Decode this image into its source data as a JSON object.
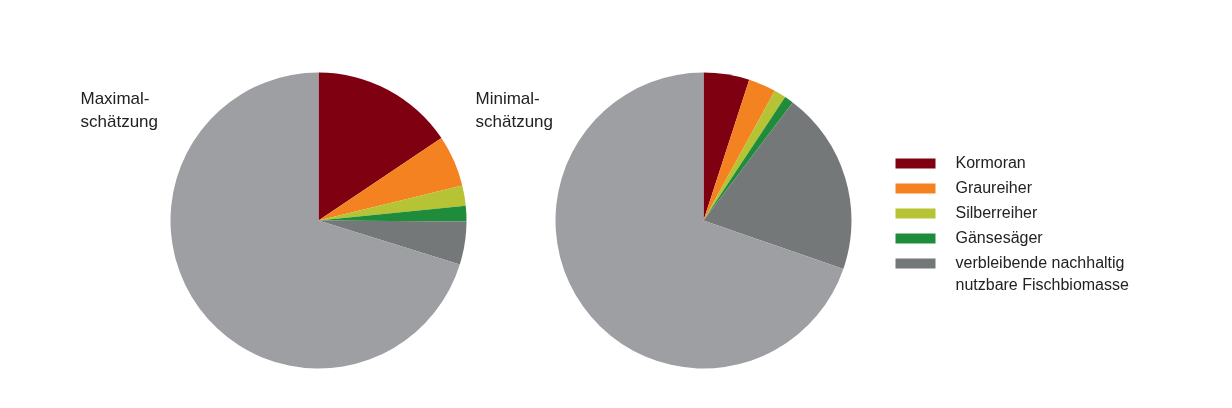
{
  "chart_data": [
    {
      "type": "pie",
      "title": "Maximal-\nschätzung",
      "categories": [
        "Kormoran",
        "Graureiher",
        "Silberreiher",
        "Gänsesäger",
        "verbleibende nachhaltig\nnutzbare Fischbiomasse",
        null
      ],
      "values": [
        15.6,
        5.6,
        2.2,
        1.7,
        4.7,
        70.2
      ],
      "colors": [
        "#7f0010",
        "#f58220",
        "#b5c334",
        "#1e8c3a",
        "#757879",
        "#9d9fa2"
      ],
      "legend": "right"
    },
    {
      "type": "pie",
      "title": "Minimal-\nschätzung",
      "categories": [
        null,
        null,
        null,
        null,
        null,
        null
      ],
      "values": [
        5.0,
        3.0,
        1.3,
        1.0,
        20.0,
        69.7
      ],
      "colors": [
        "#7f0010",
        "#f58220",
        "#b5c334",
        "#1e8c3a",
        "#757879",
        "#9d9fa2"
      ]
    }
  ]
}
